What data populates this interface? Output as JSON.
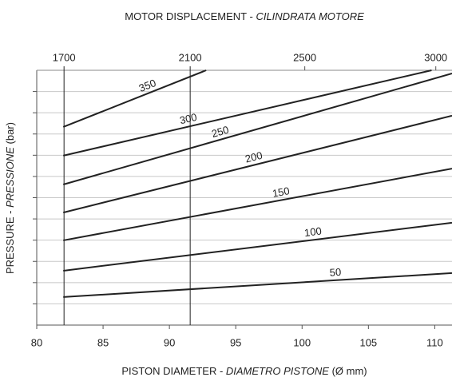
{
  "chart_data": {
    "type": "line",
    "title": [
      "MOTOR DISPLACEMENT - ",
      "CILINDRATA MOTORE"
    ],
    "xlabel": [
      "PISTON DIAMETER - ",
      "DIAMETRO PISTONE",
      " (Ø mm)"
    ],
    "ylabel": [
      "PRESSURE - ",
      "PRESSIONE",
      " (bar)"
    ],
    "xlim": [
      80,
      111.3
    ],
    "xticks": [
      80,
      85,
      90,
      95,
      100,
      105,
      110
    ],
    "x2lim": [
      1619,
      3065
    ],
    "x2scale": "sqrt",
    "x2ticks": [
      1700,
      2100,
      2500,
      3000
    ],
    "ylim": [
      0,
      12
    ],
    "yticks": [
      1,
      2,
      3,
      4,
      5,
      6,
      7,
      8,
      9,
      10,
      11
    ],
    "grid": true,
    "color": "#222222",
    "series": [
      {
        "name": "50",
        "x": [
          82,
          111.3
        ],
        "values": [
          1.32,
          2.45
        ]
      },
      {
        "name": "100",
        "x": [
          82,
          111.3
        ],
        "values": [
          2.56,
          4.82
        ]
      },
      {
        "name": "150",
        "x": [
          82,
          111.3
        ],
        "values": [
          3.99,
          7.37
        ]
      },
      {
        "name": "200",
        "x": [
          82,
          111.3
        ],
        "values": [
          5.3,
          9.86
        ]
      },
      {
        "name": "250",
        "x": [
          82,
          111.3
        ],
        "values": [
          6.62,
          11.85
        ]
      },
      {
        "name": "300",
        "x": [
          82,
          109.76
        ],
        "values": [
          7.98,
          12
        ]
      },
      {
        "name": "350",
        "x": [
          82,
          92.77
        ],
        "values": [
          9.33,
          12
        ]
      }
    ]
  }
}
